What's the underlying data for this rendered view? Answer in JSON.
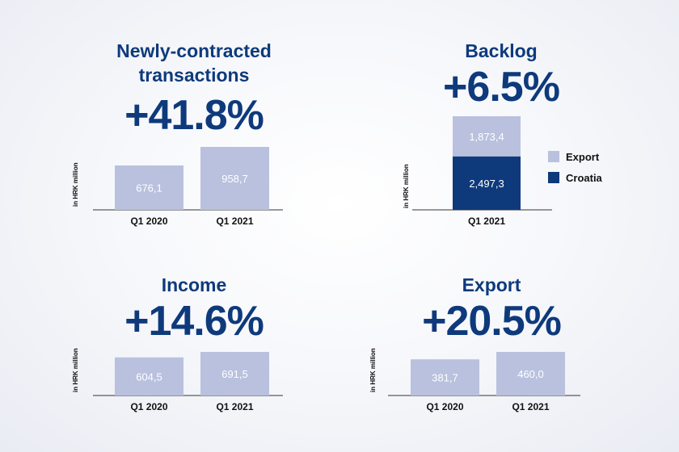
{
  "colors": {
    "light": "#b9c1de",
    "dark": "#0e3a7c",
    "text": "#0e3a7c"
  },
  "panels": {
    "contracted": {
      "title_line1": "Newly-contracted",
      "title_line2": "transactions",
      "change": "+41.8%"
    },
    "backlog": {
      "title": "Backlog",
      "change": "+6.5%"
    },
    "income": {
      "title": "Income",
      "change": "+14.6%"
    },
    "export": {
      "title": "Export",
      "change": "+20.5%"
    }
  },
  "legend": {
    "export": "Export",
    "croatia": "Croatia"
  },
  "chart_data": [
    {
      "id": "contracted",
      "type": "bar",
      "ylabel": "in HRK million",
      "categories": [
        "Q1 2020",
        "Q1 2021"
      ],
      "values": [
        676.1,
        958.7
      ],
      "labels": [
        "676,1",
        "958,7"
      ]
    },
    {
      "id": "backlog",
      "type": "bar",
      "stacked": true,
      "ylabel": "in HRK million",
      "categories": [
        "Q1 2021"
      ],
      "series": [
        {
          "name": "Croatia",
          "values": [
            2497.3
          ],
          "labels": [
            "2,497,3"
          ],
          "color": "#0e3a7c"
        },
        {
          "name": "Export",
          "values": [
            1873.4
          ],
          "labels": [
            "1,873,4"
          ],
          "color": "#b9c1de"
        }
      ]
    },
    {
      "id": "income",
      "type": "bar",
      "ylabel": "in HRK million",
      "categories": [
        "Q1 2020",
        "Q1 2021"
      ],
      "values": [
        604.5,
        691.5
      ],
      "labels": [
        "604,5",
        "691,5"
      ]
    },
    {
      "id": "export",
      "type": "bar",
      "ylabel": "in HRK million",
      "categories": [
        "Q1 2020",
        "Q1 2021"
      ],
      "values": [
        381.7,
        460.0
      ],
      "labels": [
        "381,7",
        "460,0"
      ]
    }
  ]
}
